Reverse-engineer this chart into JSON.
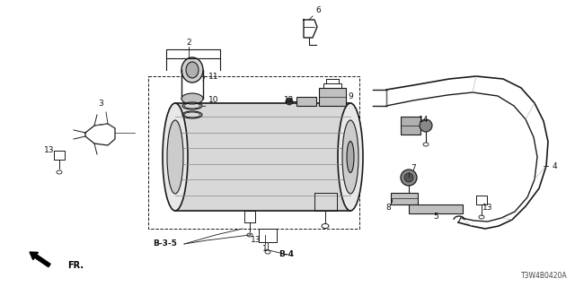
{
  "background_color": "#ffffff",
  "fig_width": 6.4,
  "fig_height": 3.2,
  "dpi": 100,
  "line_color": "#1a1a1a",
  "text_color": "#111111",
  "diagram_code": "T3W4B0420A"
}
